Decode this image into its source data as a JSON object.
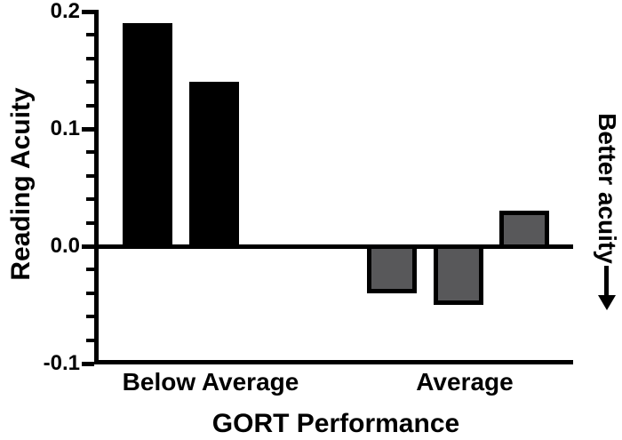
{
  "chart_data": {
    "type": "bar",
    "title": "",
    "xlabel": "GORT Performance",
    "ylabel": "Reading Acuity",
    "ylim": [
      -0.1,
      0.2
    ],
    "grid": false,
    "legend": "none",
    "baseline": 0.0,
    "y_axis": {
      "major_ticks": [
        0.2,
        0.1,
        0.0,
        -0.1
      ],
      "major_tick_labels": [
        "0.2",
        "0.1",
        "0.0",
        "-0.1"
      ],
      "minor_tick_step": 0.02
    },
    "categories": [
      "Below Average",
      "Average"
    ],
    "groups": [
      {
        "category": "Below Average",
        "fill_color": "#000000",
        "border_color": "#000000",
        "values": [
          0.19,
          0.14
        ]
      },
      {
        "category": "Average",
        "fill_color": "#58585a",
        "border_color": "#000000",
        "values": [
          -0.04,
          -0.05,
          0.03
        ]
      }
    ],
    "annotation": {
      "text": "Better acuity",
      "arrow_direction": "down",
      "position": "right-side"
    },
    "colors": {
      "axis": "#000000",
      "background": "#ffffff",
      "bar_below_average": "#000000",
      "bar_average": "#58585a"
    }
  }
}
